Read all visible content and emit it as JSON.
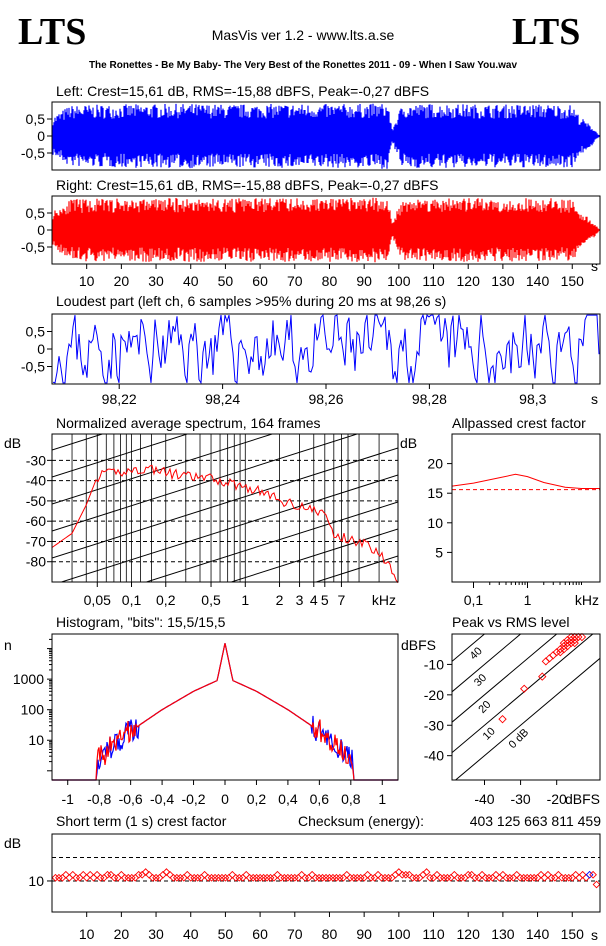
{
  "header": {
    "logo_left": "LTS",
    "logo_right": "LTS",
    "app_title": "MasVis ver 1.2 - www.lts.a.se",
    "track_title": "The Ronettes - Be My Baby- The Very Best of the Ronettes 2011 - 09 - When I Saw You.wav"
  },
  "colors": {
    "left": "#0000ff",
    "right": "#ff0000",
    "axis": "#000000",
    "grid": "#000000"
  },
  "chart_data": [
    {
      "id": "left-waveform",
      "type": "area",
      "title": "Left: Crest=15,61 dB, RMS=-15,88 dBFS, Peak=-0,27 dBFS",
      "yticks": [
        "0,5",
        "0",
        "-0,5"
      ],
      "ytick_values": [
        0.5,
        0,
        -0.5
      ],
      "ylim": [
        -1,
        1
      ],
      "xlim": [
        0,
        158
      ],
      "envelope_times_s": [
        0,
        5,
        10,
        20,
        30,
        40,
        50,
        60,
        70,
        80,
        90,
        97,
        98,
        101,
        110,
        120,
        130,
        140,
        150,
        152,
        156,
        158
      ],
      "envelope_peak": [
        0.55,
        0.9,
        0.92,
        0.93,
        0.94,
        0.95,
        0.93,
        0.94,
        0.95,
        0.94,
        0.95,
        0.97,
        0.2,
        0.94,
        0.95,
        0.94,
        0.93,
        0.94,
        0.92,
        0.6,
        0.25,
        0.0
      ]
    },
    {
      "id": "right-waveform",
      "type": "area",
      "title": "Right: Crest=15,61 dB, RMS=-15,88 dBFS, Peak=-0,27 dBFS",
      "yticks": [
        "0,5",
        "0",
        "-0,5"
      ],
      "ytick_values": [
        0.5,
        0,
        -0.5
      ],
      "ylim": [
        -1,
        1
      ],
      "xlim": [
        0,
        158
      ],
      "xticks": [
        10,
        20,
        30,
        40,
        50,
        60,
        70,
        80,
        90,
        100,
        110,
        120,
        130,
        140,
        150
      ],
      "xunit": "s",
      "envelope_times_s": [
        0,
        5,
        10,
        20,
        30,
        40,
        50,
        60,
        70,
        80,
        90,
        97,
        98,
        101,
        110,
        120,
        130,
        140,
        150,
        152,
        156,
        158
      ],
      "envelope_peak": [
        0.55,
        0.9,
        0.92,
        0.93,
        0.94,
        0.95,
        0.93,
        0.94,
        0.95,
        0.94,
        0.95,
        0.97,
        0.2,
        0.94,
        0.95,
        0.94,
        0.93,
        0.94,
        0.92,
        0.6,
        0.25,
        0.0
      ]
    },
    {
      "id": "loudest-part",
      "type": "line",
      "title": "Loudest part (left  ch, 6 samples >95% during 20 ms at 98,26 s)",
      "yticks": [
        "0,5",
        "0",
        "-0,5"
      ],
      "ytick_values": [
        0.5,
        0,
        -0.5
      ],
      "ylim": [
        -1,
        1
      ],
      "xlim": [
        98.207,
        98.313
      ],
      "xticks": [
        "98,22",
        "98,24",
        "98,26",
        "98,28",
        "98,3"
      ],
      "xtick_values": [
        98.22,
        98.24,
        98.26,
        98.28,
        98.3
      ],
      "xunit": "s"
    },
    {
      "id": "average-spectrum",
      "type": "line",
      "title": "Normalized average spectrum, 164 frames",
      "ylabel": "dB",
      "yticks": [
        "-30",
        "-40",
        "-50",
        "-60",
        "-70",
        "-80"
      ],
      "ytick_values": [
        -30,
        -40,
        -50,
        -60,
        -70,
        -80
      ],
      "ylim": [
        -90,
        -17
      ],
      "xscale": "log",
      "xlim": [
        0.02,
        22
      ],
      "xticks": [
        "0,05",
        "0,1",
        "0,2",
        "0,5",
        "1",
        "2",
        "3",
        "4",
        "5",
        "7"
      ],
      "xtick_values": [
        0.05,
        0.1,
        0.2,
        0.5,
        1,
        2,
        3,
        4,
        5,
        7
      ],
      "xunit": "kHz",
      "x": [
        0.02,
        0.03,
        0.04,
        0.05,
        0.07,
        0.1,
        0.15,
        0.2,
        0.3,
        0.5,
        0.7,
        1,
        1.5,
        2,
        3,
        4,
        5,
        6,
        7,
        10,
        15,
        20,
        22
      ],
      "values": [
        -73,
        -66,
        -52,
        -38,
        -36,
        -35,
        -34,
        -36,
        -38,
        -39,
        -41,
        -43,
        -46,
        -50,
        -52,
        -55,
        -56,
        -67,
        -68,
        -70,
        -75,
        -85,
        -88
      ]
    },
    {
      "id": "allpassed-crest",
      "type": "line",
      "title": "Allpassed crest factor",
      "ylabel": "dB",
      "yticks": [
        "20",
        "15",
        "10",
        "5"
      ],
      "ytick_values": [
        20,
        15,
        10,
        5
      ],
      "ylim": [
        0,
        25
      ],
      "xscale": "log",
      "xlim": [
        0.04,
        22
      ],
      "xticks": [
        "0,1",
        "1",
        "kHz"
      ],
      "xtick_values": [
        0.1,
        1
      ],
      "baseline": 15.6,
      "x": [
        0.04,
        0.1,
        0.3,
        0.6,
        1,
        2,
        5,
        10,
        22
      ],
      "values": [
        16.2,
        16.7,
        17.6,
        18.2,
        17.8,
        16.8,
        16.0,
        15.8,
        15.8
      ]
    },
    {
      "id": "histogram",
      "type": "line",
      "title": "Histogram, \"bits\": 15,5/15,5",
      "ylabel": "n",
      "yticks": [
        "1000",
        "100",
        "10"
      ],
      "ytick_values": [
        1000,
        100,
        10
      ],
      "yscale": "log",
      "ylim": [
        0.5,
        30000
      ],
      "xlim": [
        -1.1,
        1.1
      ],
      "xticks": [
        "-1",
        "-0,8",
        "-0,6",
        "-0,4",
        "-0,2",
        "0",
        "0,2",
        "0,4",
        "0,6",
        "0,8",
        "1"
      ],
      "xtick_values": [
        -1,
        -0.8,
        -0.6,
        -0.4,
        -0.2,
        0,
        0.2,
        0.4,
        0.6,
        0.8,
        1
      ],
      "x": [
        -0.82,
        -0.7,
        -0.6,
        -0.4,
        -0.2,
        -0.05,
        0,
        0.05,
        0.2,
        0.4,
        0.6,
        0.7,
        0.82
      ],
      "values": [
        2,
        8,
        20,
        100,
        400,
        900,
        15000,
        900,
        400,
        100,
        20,
        8,
        2
      ]
    },
    {
      "id": "peak-vs-rms",
      "type": "scatter",
      "title": "Peak vs RMS level",
      "ylabel": "dBFS",
      "xlabel": "dBFS",
      "yticks": [
        "-10",
        "-20",
        "-30",
        "-40"
      ],
      "ytick_values": [
        -10,
        -20,
        -30,
        -40
      ],
      "ylim": [
        -48,
        0
      ],
      "xticks": [
        "-40",
        "-30",
        "-20"
      ],
      "xtick_values": [
        -40,
        -30,
        -20
      ],
      "xlim": [
        -49,
        -8
      ],
      "diag_labels": [
        "40",
        "30",
        "20",
        "10",
        "0 dB"
      ],
      "diag_offsets": [
        40,
        30,
        20,
        10,
        0
      ],
      "points": [
        [
          -18,
          -3
        ],
        [
          -17,
          -2
        ],
        [
          -16,
          -1
        ],
        [
          -15,
          -1
        ],
        [
          -16,
          -2
        ],
        [
          -17,
          -3
        ],
        [
          -18,
          -4
        ],
        [
          -19,
          -5
        ],
        [
          -16,
          -3
        ],
        [
          -15,
          -2
        ],
        [
          -14,
          -1
        ],
        [
          -13,
          -1
        ],
        [
          -20,
          -6
        ],
        [
          -21,
          -7
        ],
        [
          -22,
          -8
        ],
        [
          -15,
          -3
        ],
        [
          -17,
          -4
        ],
        [
          -18,
          -5
        ],
        [
          -19,
          -6
        ],
        [
          -23,
          -9
        ],
        [
          -29,
          -18
        ],
        [
          -35,
          -28
        ],
        [
          -24,
          -14
        ]
      ]
    },
    {
      "id": "short-term-crest",
      "type": "scatter",
      "title": "Short term (1 s) crest factor",
      "ylabel": "dB",
      "yticks": [
        "10"
      ],
      "ytick_values": [
        10
      ],
      "yscale": "log",
      "ylim": [
        4,
        40
      ],
      "dashed_levels": [
        20,
        10
      ],
      "xlim": [
        0,
        158
      ],
      "xticks": [
        10,
        20,
        30,
        40,
        50,
        60,
        70,
        80,
        90,
        100,
        110,
        120,
        130,
        140,
        150
      ],
      "xunit": "s",
      "samples": [
        11,
        11,
        11,
        12,
        11,
        12,
        11,
        11,
        12,
        11,
        12,
        11,
        12,
        11,
        11,
        12,
        12,
        11,
        11,
        12,
        11,
        11,
        11,
        11,
        12,
        12,
        13,
        12,
        11,
        11,
        11,
        12,
        13,
        12,
        11,
        11,
        11,
        11,
        12,
        11,
        11,
        11,
        11,
        12,
        11,
        11,
        11,
        11,
        11,
        11,
        11,
        12,
        11,
        11,
        11,
        12,
        11,
        11,
        11,
        11,
        11,
        11,
        11,
        11,
        12,
        11,
        11,
        11,
        11,
        11,
        11,
        12,
        11,
        11,
        12,
        11,
        11,
        11,
        11,
        11,
        11,
        11,
        11,
        11,
        12,
        11,
        11,
        11,
        11,
        11,
        12,
        11,
        11,
        12,
        11,
        11,
        11,
        11,
        12,
        13,
        12,
        12,
        12,
        11,
        11,
        11,
        12,
        13,
        11,
        11,
        12,
        11,
        11,
        11,
        11,
        12,
        11,
        11,
        11,
        12,
        12,
        11,
        11,
        12,
        11,
        11,
        11,
        12,
        11,
        12,
        11,
        11,
        11,
        12,
        11,
        11,
        11,
        11,
        11,
        11,
        12,
        11,
        12,
        11,
        11,
        12,
        11,
        11,
        11,
        11,
        12,
        11,
        12,
        11,
        12,
        12,
        9
      ],
      "checksum_label": "Checksum (energy):",
      "checksum_value": "403 125 663 811 459"
    }
  ]
}
